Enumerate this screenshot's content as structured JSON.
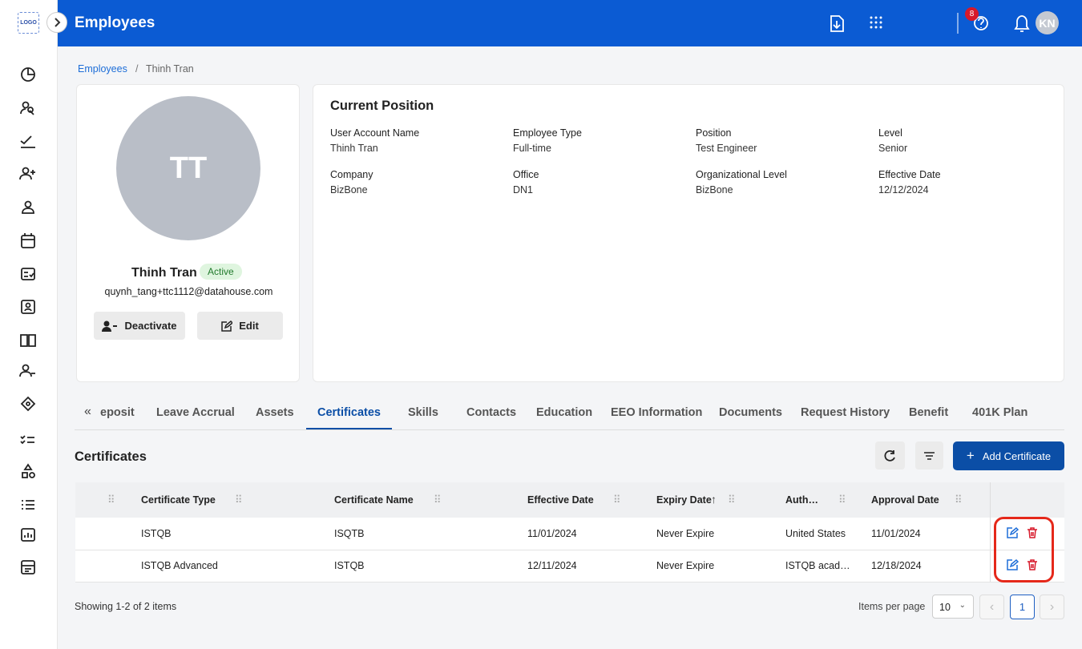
{
  "sidebar": {
    "logo": "LOGO"
  },
  "header": {
    "title": "Employees",
    "notification_count": 8,
    "avatar": "KN"
  },
  "breadcrumb": {
    "parent": "Employees",
    "current": "Thinh Tran"
  },
  "profile": {
    "initials": "TT",
    "name": "Thinh Tran",
    "status": "Active",
    "email": "quynh_tang+ttc1112@datahouse.com",
    "deactivate": "Deactivate",
    "edit": "Edit"
  },
  "position": {
    "title": "Current Position",
    "fields": [
      {
        "label": "User Account Name",
        "value": "Thinh Tran"
      },
      {
        "label": "Employee Type",
        "value": "Full-time"
      },
      {
        "label": "Position",
        "value": "Test Engineer"
      },
      {
        "label": "Level",
        "value": "Senior"
      },
      {
        "label": "Company",
        "value": "BizBone"
      },
      {
        "label": "Office",
        "value": "DN1"
      },
      {
        "label": "Organizational Level",
        "value": "BizBone"
      },
      {
        "label": "Effective Date",
        "value": "12/12/2024"
      }
    ]
  },
  "tabs": {
    "items": [
      "eposit",
      "Leave Accrual",
      "Assets",
      "Certificates",
      "Skills",
      "Contacts",
      "Education",
      "EEO Information",
      "Documents",
      "Request History",
      "Benefit",
      "401K Plan"
    ],
    "active": "Certificates"
  },
  "section": {
    "title": "Certificates",
    "add_button": "Add Certificate"
  },
  "table": {
    "columns": [
      "Certificate Type",
      "Certificate Name",
      "Effective Date",
      "Expiry Date",
      "Auth…",
      "Approval Date"
    ],
    "rows": [
      [
        "ISTQB",
        "ISQTB",
        "11/01/2024",
        "Never Expire",
        "United States",
        "11/01/2024"
      ],
      [
        "ISTQB Advanced",
        "ISTQB",
        "12/11/2024",
        "Never Expire",
        "ISTQB acad…",
        "12/18/2024"
      ]
    ]
  },
  "footer": {
    "summary": "Showing 1-2 of 2 items",
    "per_page_label": "Items per page",
    "per_page": 10,
    "page": 1
  }
}
